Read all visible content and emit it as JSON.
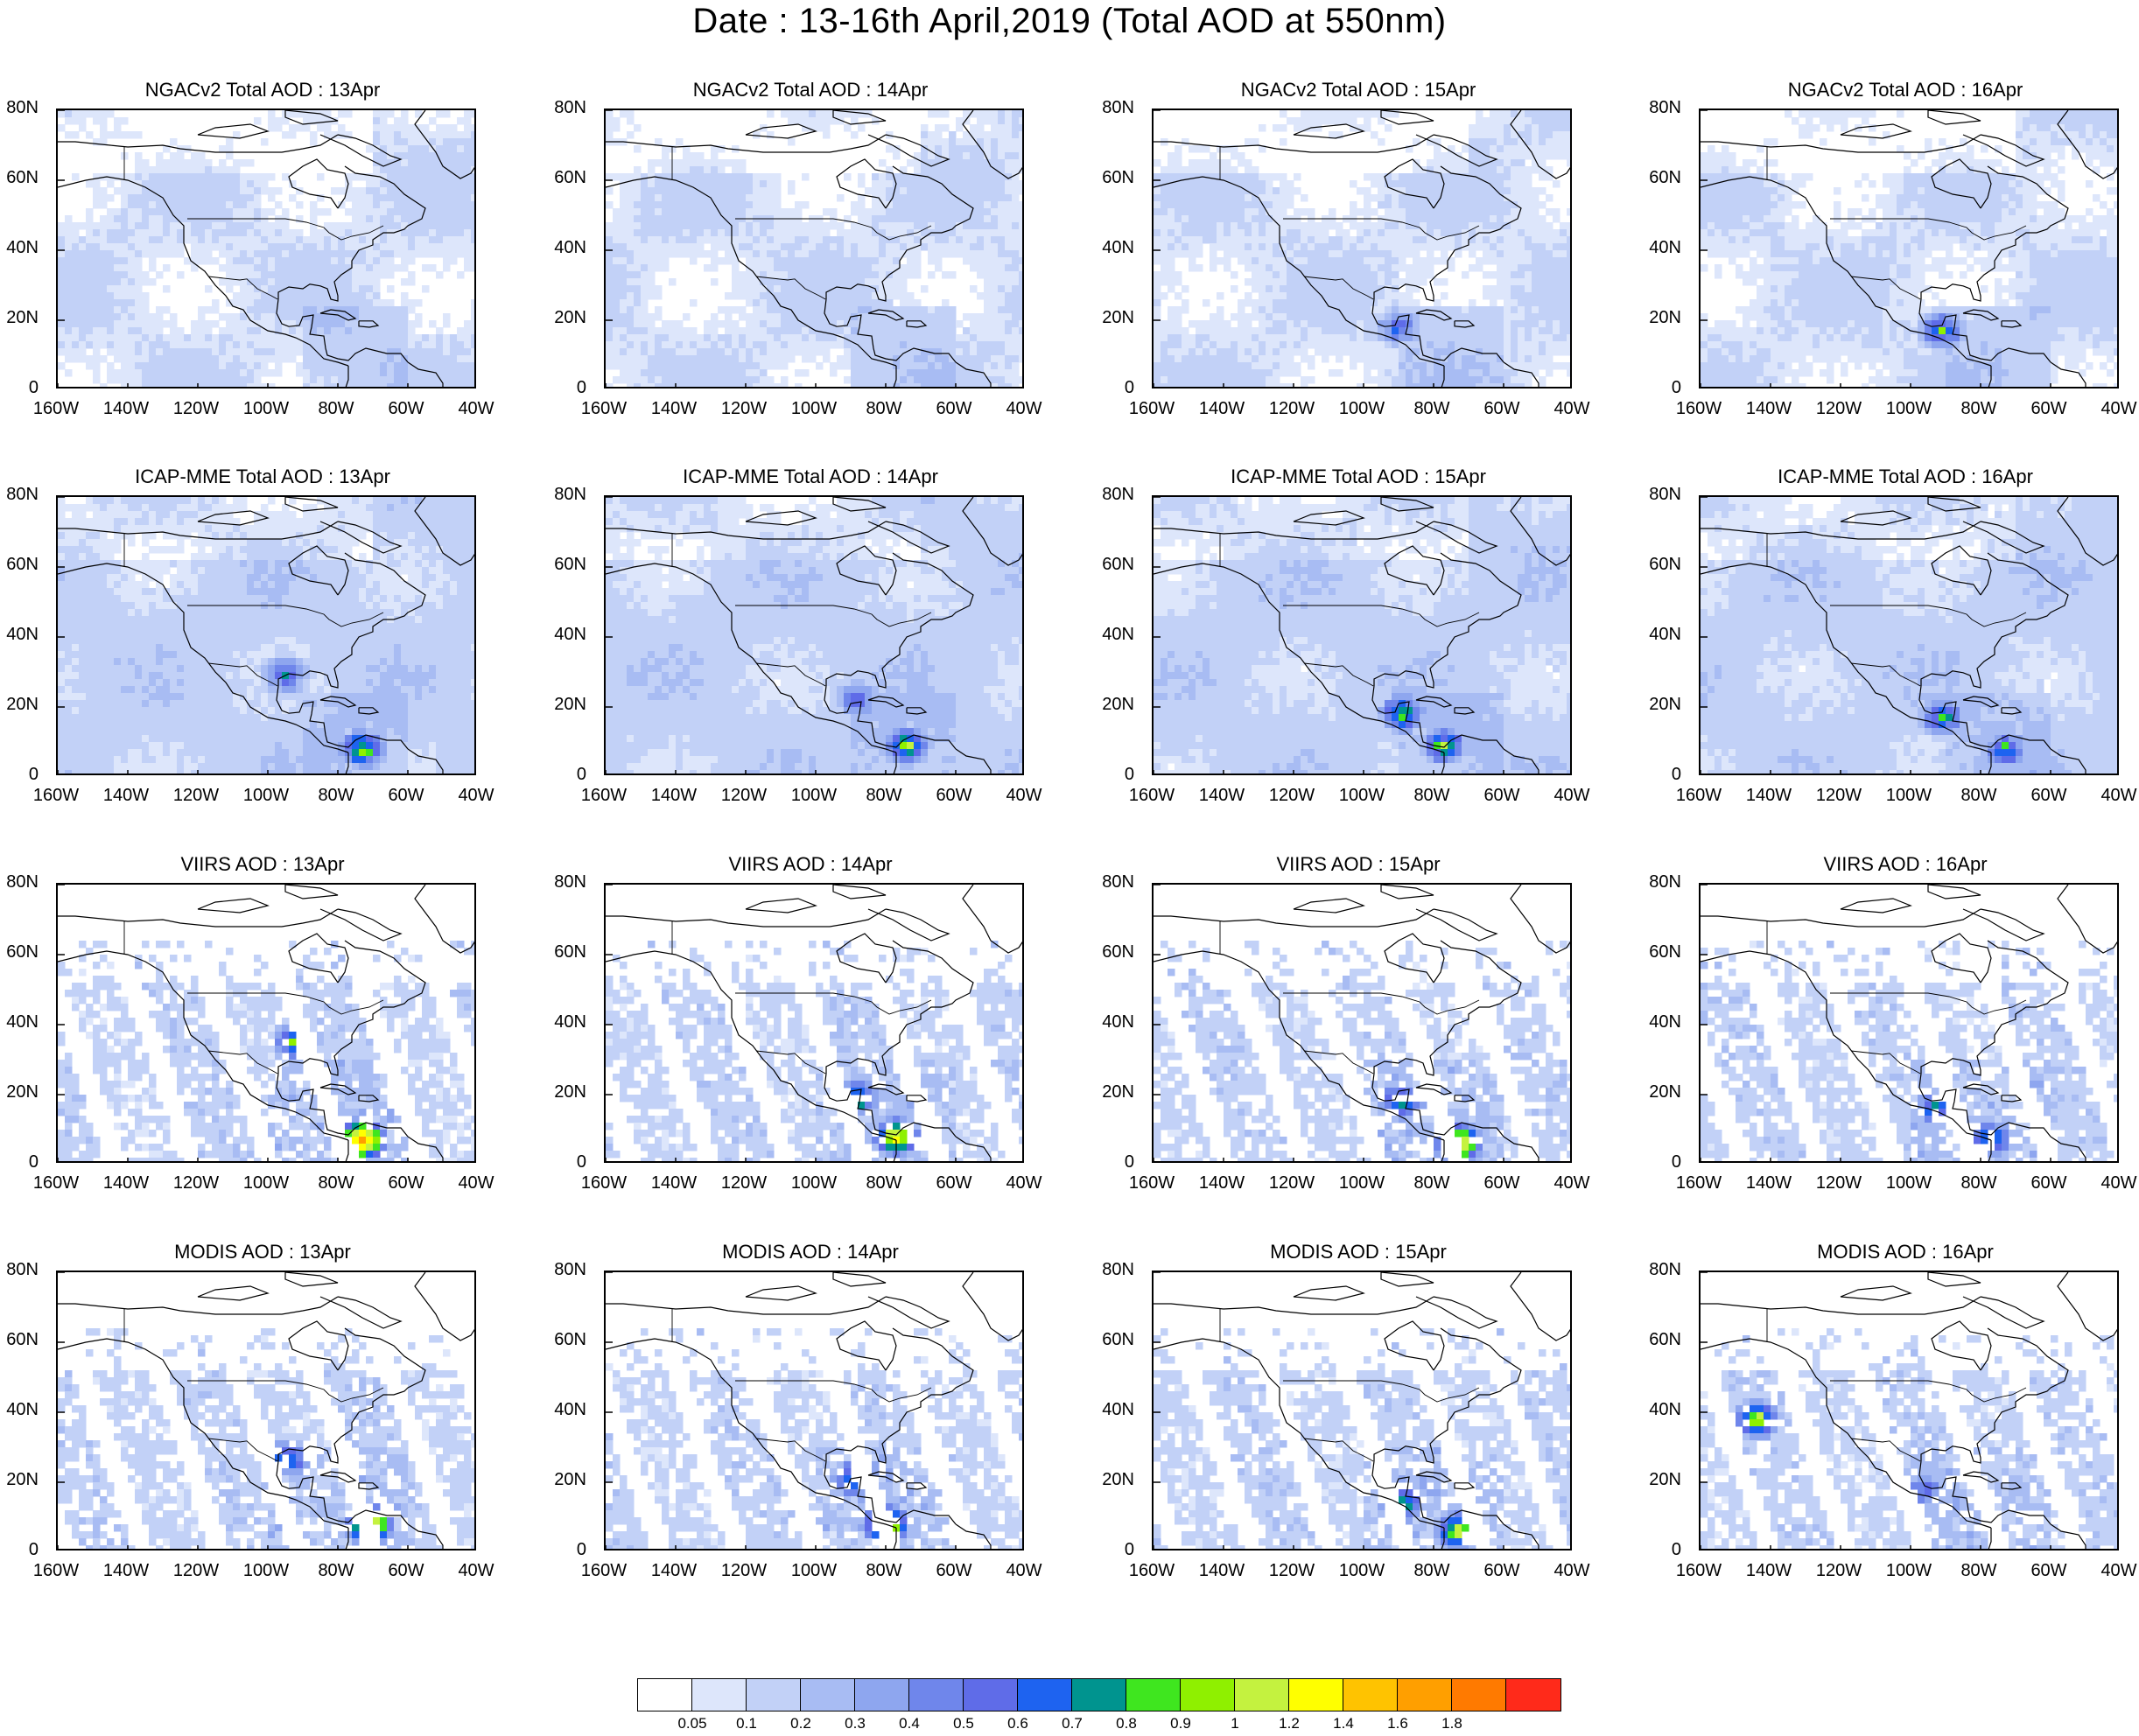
{
  "title": "Date : 13-16th April,2019 (Total AOD at 550nm)",
  "panels": [
    {
      "title": "NGACv2 Total AOD : 13Apr",
      "style": "model",
      "hot": []
    },
    {
      "title": "NGACv2 Total AOD : 14Apr",
      "style": "model",
      "hot": []
    },
    {
      "title": "NGACv2 Total AOD : 15Apr",
      "style": "model",
      "hot": [
        [
          -90,
          18,
          0.5
        ]
      ]
    },
    {
      "title": "NGACv2 Total AOD : 16Apr",
      "style": "model",
      "hot": [
        [
          -91,
          17,
          0.7
        ]
      ]
    },
    {
      "title": "ICAP-MME Total AOD : 13Apr",
      "style": "model",
      "hot": [
        [
          -95,
          29,
          0.6
        ],
        [
          -73,
          8,
          0.9
        ]
      ]
    },
    {
      "title": "ICAP-MME Total AOD : 14Apr",
      "style": "model",
      "hot": [
        [
          -88,
          22,
          0.5
        ],
        [
          -74,
          9,
          0.9
        ]
      ]
    },
    {
      "title": "ICAP-MME Total AOD : 15Apr",
      "style": "model",
      "hot": [
        [
          -89,
          18,
          0.8
        ],
        [
          -77,
          9,
          0.8
        ]
      ]
    },
    {
      "title": "ICAP-MME Total AOD : 16Apr",
      "style": "model",
      "hot": [
        [
          -91,
          17,
          0.7
        ],
        [
          -73,
          8,
          0.7
        ]
      ]
    },
    {
      "title": "VIIRS AOD : 13Apr",
      "style": "sat",
      "hot": [
        [
          -73,
          7,
          1.6
        ],
        [
          -92,
          35,
          0.8
        ]
      ]
    },
    {
      "title": "VIIRS AOD : 14Apr",
      "style": "sat",
      "hot": [
        [
          -88,
          19,
          0.8
        ],
        [
          -77,
          8,
          1.2
        ]
      ]
    },
    {
      "title": "VIIRS AOD : 15Apr",
      "style": "sat",
      "hot": [
        [
          -89,
          18,
          0.8
        ],
        [
          -73,
          6,
          1.4
        ]
      ]
    },
    {
      "title": "VIIRS AOD : 16Apr",
      "style": "sat",
      "hot": [
        [
          -93,
          16,
          0.7
        ],
        [
          -77,
          7,
          0.8
        ]
      ]
    },
    {
      "title": "MODIS AOD : 13Apr",
      "style": "sat",
      "hot": [
        [
          -94,
          27,
          0.7
        ],
        [
          -71,
          8,
          1.4
        ]
      ]
    },
    {
      "title": "MODIS AOD : 14Apr",
      "style": "sat",
      "hot": [
        [
          -89,
          21,
          0.8
        ],
        [
          -80,
          8,
          1.2
        ]
      ]
    },
    {
      "title": "MODIS AOD : 15Apr",
      "style": "sat",
      "hot": [
        [
          -89,
          14,
          0.8
        ],
        [
          -73,
          6,
          1.0
        ]
      ]
    },
    {
      "title": "MODIS AOD : 16Apr",
      "style": "sat",
      "hot": [
        [
          -96,
          18,
          0.5
        ],
        [
          -144,
          38,
          1.0
        ]
      ]
    }
  ],
  "axes": {
    "ylabels": [
      "80N",
      "60N",
      "40N",
      "20N",
      "0"
    ],
    "xlabels": [
      "160W",
      "140W",
      "120W",
      "100W",
      "80W",
      "60W",
      "40W"
    ],
    "lon_range": [
      -160,
      -40
    ],
    "lat_range": [
      0,
      80
    ]
  },
  "colorbar": {
    "colors": [
      "#ffffff",
      "#dde6fb",
      "#c2d1f7",
      "#a8bcf3",
      "#8ea6ef",
      "#6f86eb",
      "#5f6ce8",
      "#1e63f0",
      "#00948f",
      "#3fe61f",
      "#8ff000",
      "#c4f23f",
      "#ffff00",
      "#ffc300",
      "#ff9f00",
      "#ff7a00",
      "#ff2a1a"
    ],
    "labels": [
      "0.05",
      "0.1",
      "0.2",
      "0.3",
      "0.4",
      "0.5",
      "0.6",
      "0.7",
      "0.8",
      "0.9",
      "1",
      "1.2",
      "1.4",
      "1.6",
      "1.8"
    ]
  }
}
